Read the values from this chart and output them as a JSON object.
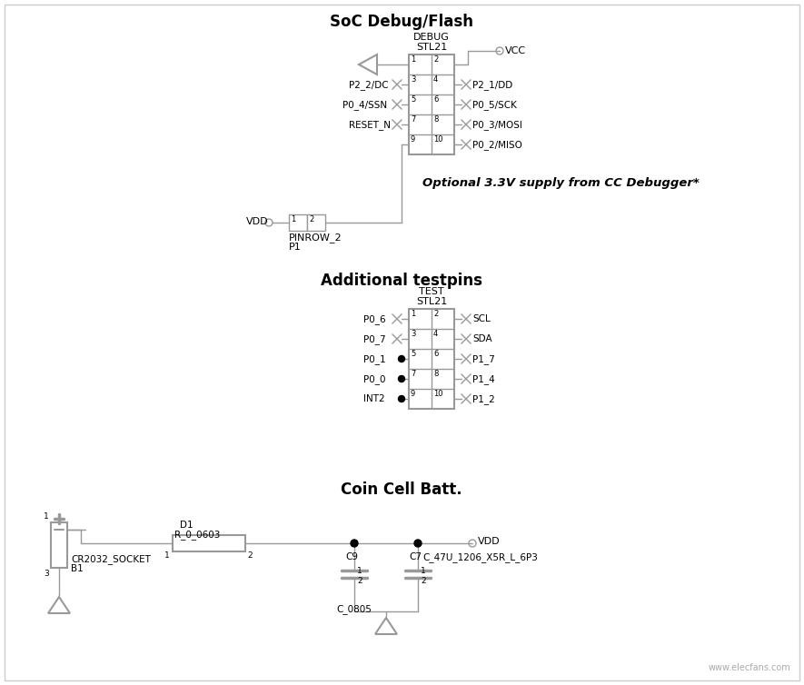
{
  "bg_color": "#ffffff",
  "line_color": "#999999",
  "text_color": "#000000",
  "section1_title": "SoC Debug/Flash",
  "section2_title": "Additional testpins",
  "section3_title": "Coin Cell Batt.",
  "optional_text": "Optional 3.3V supply from CC Debugger*",
  "debug_label1": "DEBUG",
  "debug_label2": "STL21",
  "test_label1": "TEST",
  "test_label2": "STL21",
  "watermark": "www.elecfans.com"
}
